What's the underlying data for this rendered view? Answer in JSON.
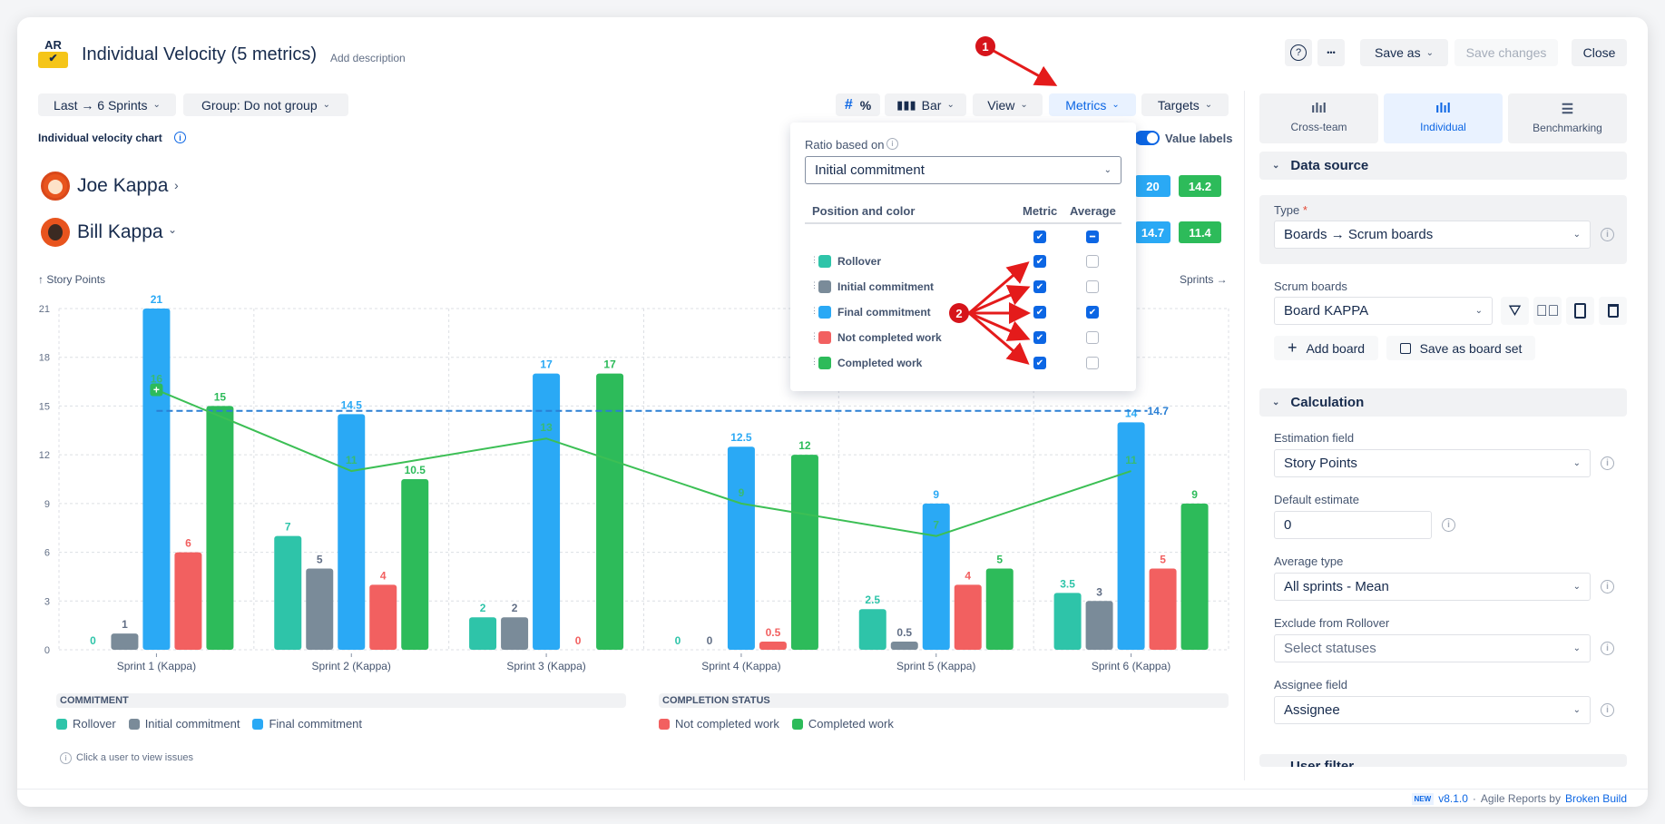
{
  "header": {
    "logo_text": "AR",
    "title": "Individual Velocity (5 metrics)",
    "add_description": "Add description",
    "help": "?",
    "more": "•••",
    "save_as": "Save as",
    "save_changes": "Save changes",
    "close": "Close"
  },
  "filters": {
    "range": "Last → 6 Sprints",
    "group": "Group: Do not group"
  },
  "toolbar": {
    "hash": "#",
    "percent": "%",
    "chart_type": "Bar",
    "view": "View",
    "metrics": "Metrics",
    "targets": "Targets",
    "value_labels": "Value labels",
    "value_labels_on": true
  },
  "chart_title": "Individual velocity chart",
  "users": [
    {
      "name": "Joe Kappa",
      "badges": [
        "20",
        "14.2"
      ]
    },
    {
      "name": "Bill Kappa",
      "badges": [
        "14.7",
        "11.4"
      ]
    }
  ],
  "metrics_popup": {
    "ratio_label": "Ratio based on",
    "ratio_value": "Initial commitment",
    "col_position": "Position and color",
    "col_metric": "Metric",
    "col_average": "Average",
    "rows": [
      {
        "label": "Rollover",
        "metric": true,
        "average": false
      },
      {
        "label": "Initial commitment",
        "metric": true,
        "average": false
      },
      {
        "label": "Final commitment",
        "metric": true,
        "average": true
      },
      {
        "label": "Not completed work",
        "metric": true,
        "average": false
      },
      {
        "label": "Completed work",
        "metric": true,
        "average": false
      }
    ]
  },
  "annotations": [
    "1",
    "2"
  ],
  "chart_data": {
    "type": "bar",
    "ylabel": "↑ Story Points",
    "xlabel": "Sprints →",
    "ylim": [
      0,
      21
    ],
    "yticks": [
      0,
      3,
      6,
      9,
      12,
      15,
      18,
      21
    ],
    "grid": true,
    "categories": [
      "Sprint 1 (Kappa)",
      "Sprint 2 (Kappa)",
      "Sprint 3 (Kappa)",
      "Sprint 4 (Kappa)",
      "Sprint 5 (Kappa)",
      "Sprint 6 (Kappa)"
    ],
    "series": [
      {
        "name": "Rollover",
        "color": "#2ec4a9",
        "values": [
          0,
          7,
          2,
          0,
          2.5,
          3.5
        ]
      },
      {
        "name": "Initial commitment",
        "color": "#7a8b99",
        "values": [
          1,
          5,
          2,
          0,
          0.5,
          3
        ]
      },
      {
        "name": "Final commitment",
        "color": "#2aa9f5",
        "values": [
          21,
          14.5,
          17,
          12.5,
          9,
          14
        ]
      },
      {
        "name": "Not completed work",
        "color": "#f26060",
        "values": [
          6,
          4,
          0,
          0.5,
          4,
          5
        ]
      },
      {
        "name": "Completed work",
        "color": "#2dbb5a",
        "values": [
          15,
          10.5,
          17,
          12,
          5,
          9
        ]
      }
    ],
    "line": {
      "color": "#3cbf55",
      "values": [
        16,
        11,
        13,
        9,
        7,
        11
      ]
    },
    "average_line": {
      "value": 14.7,
      "label": "14.7",
      "color": "#2a7fd4"
    },
    "legend_groups": [
      {
        "title": "COMMITMENT",
        "items": [
          "Rollover",
          "Initial commitment",
          "Final commitment"
        ]
      },
      {
        "title": "COMPLETION STATUS",
        "items": [
          "Not completed work",
          "Completed work"
        ]
      }
    ]
  },
  "hint": "Click a user to view issues",
  "sidebar": {
    "tabs": [
      {
        "label": "Cross-team",
        "active": false
      },
      {
        "label": "Individual",
        "active": true
      },
      {
        "label": "Benchmarking",
        "active": false
      }
    ],
    "data_source": "Data source",
    "type_label": "Type",
    "type_value": "Boards → Scrum boards",
    "scrum_label": "Scrum boards",
    "scrum_value": "Board KAPPA",
    "add_board": "Add board",
    "save_board_set": "Save as board set",
    "calculation": "Calculation",
    "estimation_label": "Estimation field",
    "estimation_value": "Story Points",
    "default_label": "Default estimate",
    "default_value": "0",
    "avg_label": "Average type",
    "avg_value": "All sprints - Mean",
    "exclude_label": "Exclude from Rollover",
    "exclude_placeholder": "Select statuses",
    "assignee_label": "Assignee field",
    "assignee_value": "Assignee",
    "user_filter": "User filter"
  },
  "footer": {
    "new": "NEW",
    "version": "v8.1.0",
    "sep": "·",
    "by": "Agile Reports by",
    "brand": "Broken Build"
  }
}
